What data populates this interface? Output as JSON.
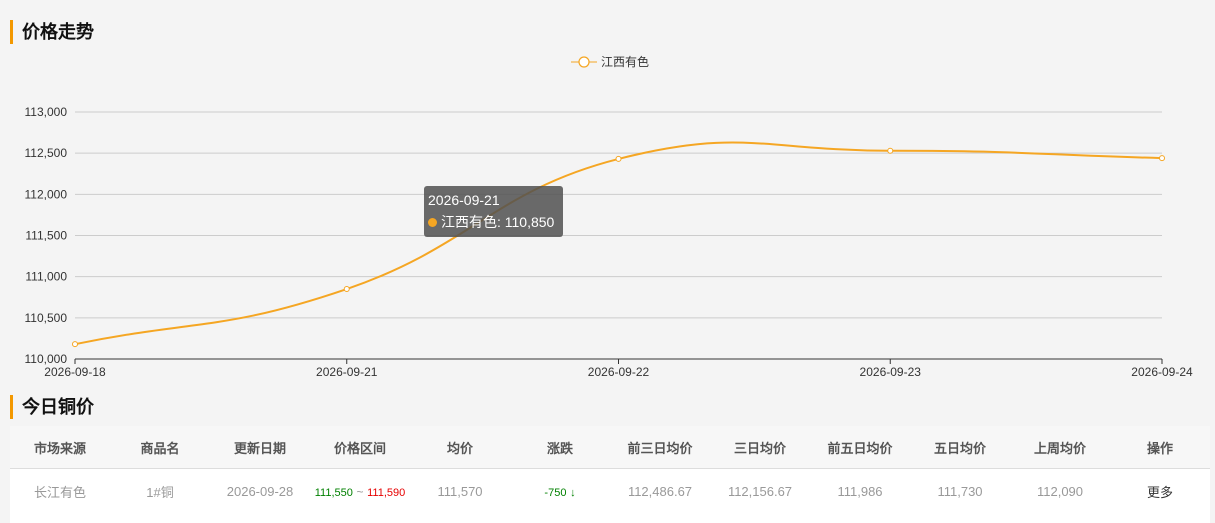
{
  "section1_title": "价格走势",
  "section2_title": "今日铜价",
  "chart_data": {
    "type": "line",
    "x": [
      "2026-09-18",
      "2026-09-21",
      "2026-09-22",
      "2026-09-23",
      "2026-09-24"
    ],
    "series": [
      {
        "name": "江西有色",
        "values": [
          110180,
          110850,
          112430,
          112530,
          112440
        ],
        "color": "#f5a623"
      }
    ],
    "ylim": [
      110000,
      113000
    ],
    "yticks": [
      "110,000",
      "110,500",
      "111,000",
      "111,500",
      "112,000",
      "112,500",
      "113,000"
    ],
    "yticks_values": [
      110000,
      110500,
      111000,
      111500,
      112000,
      112500,
      113000
    ],
    "grid": true,
    "legend_position": "top-center",
    "smooth": true
  },
  "tooltip": {
    "date": "2026-09-21",
    "label": "江西有色: 110,850"
  },
  "table": {
    "headers": [
      "市场来源",
      "商品名",
      "更新日期",
      "价格区间",
      "均价",
      "涨跌",
      "前三日均价",
      "三日均价",
      "前五日均价",
      "五日均价",
      "上周均价",
      "操作"
    ],
    "row": {
      "market": "长江有色",
      "product": "1#铜",
      "date": "2026-09-28",
      "range_low": "111,550",
      "range_sep": "~",
      "range_high": "111,590",
      "avg": "111,570",
      "change": "-750",
      "change_arrow": "↓",
      "prev3_avg": "112,486.67",
      "avg3": "112,156.67",
      "prev5_avg": "111,986",
      "avg5": "111,730",
      "last_week_avg": "112,090",
      "action": "更多"
    }
  }
}
